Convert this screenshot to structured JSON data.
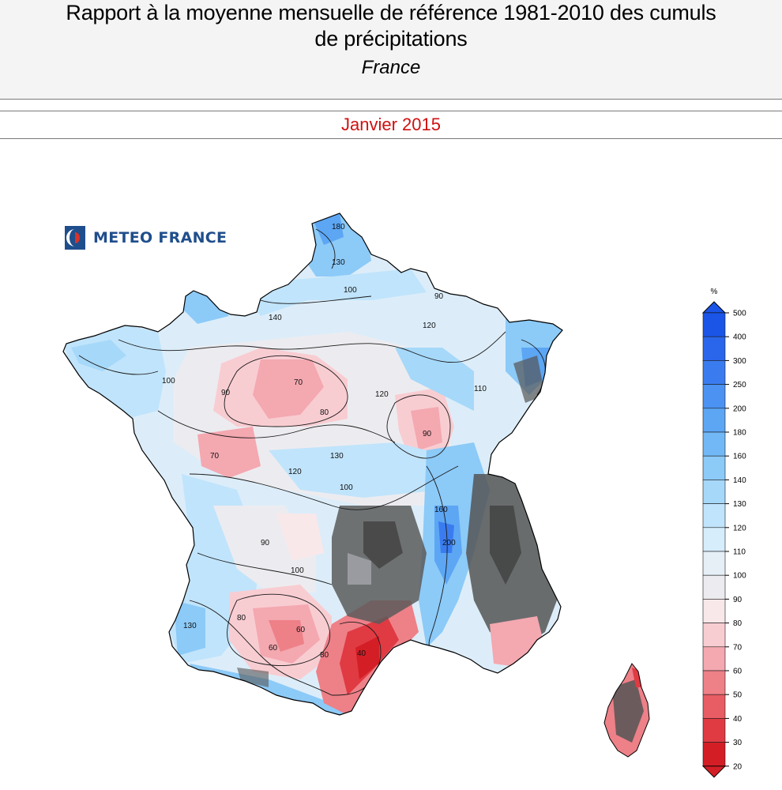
{
  "header": {
    "title_line1": "Rapport à la moyenne mensuelle de référence 1981-2010 des cumuls",
    "title_line2": "de précipitations",
    "subtitle": "France",
    "period": "Janvier 2015"
  },
  "logo": {
    "text": "METEO FRANCE",
    "icon": "meteo-france-logo-icon"
  },
  "legend": {
    "unit": "%",
    "levels": [
      "500",
      "400",
      "300",
      "250",
      "200",
      "180",
      "160",
      "140",
      "130",
      "120",
      "110",
      "100",
      "90",
      "80",
      "70",
      "60",
      "50",
      "40",
      "30",
      "20"
    ],
    "colors": [
      "#1a55e8",
      "#2a66ec",
      "#3a7cf0",
      "#4b92f2",
      "#5ca6f4",
      "#72b8f6",
      "#8ccaf8",
      "#a6d8f9",
      "#c0e4fb",
      "#d6edfb",
      "#e6eef6",
      "#ececf0",
      "#f8e8ea",
      "#f8cdd2",
      "#f4a8b0",
      "#ee8088",
      "#e85c64",
      "#e03a42",
      "#d41e26"
    ]
  },
  "map": {
    "contour_labels": [
      "180",
      "130",
      "100",
      "90",
      "140",
      "120",
      "110",
      "80",
      "70",
      "60",
      "40",
      "200",
      "160"
    ]
  }
}
